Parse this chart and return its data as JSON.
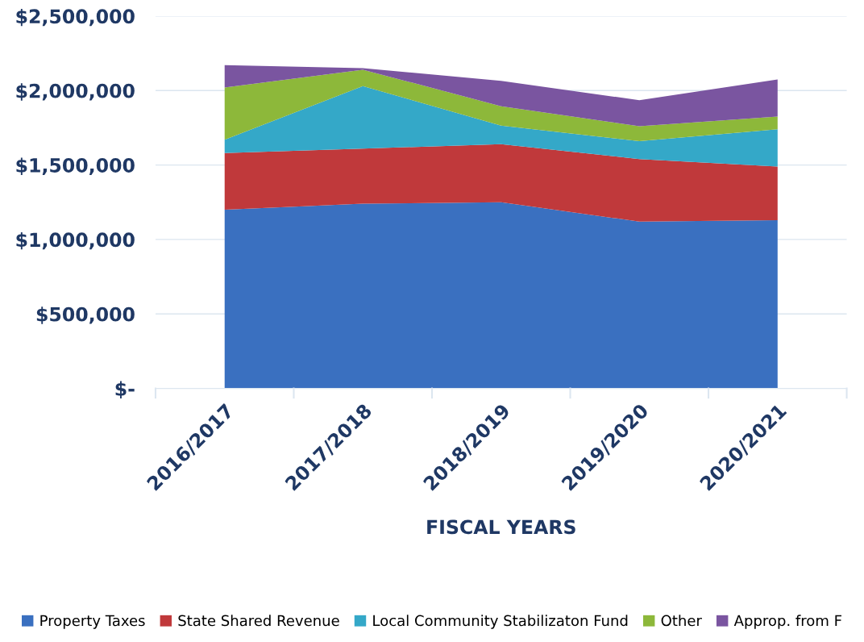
{
  "chart_data": {
    "type": "area",
    "stacked": true,
    "xlabel": "FISCAL YEARS",
    "categories": [
      "2016/2017",
      "2017/2018",
      "2018/2019",
      "2019/2020",
      "2020/2021"
    ],
    "series": [
      {
        "name": "Property Taxes",
        "color": "#3a70c0",
        "values": [
          1200000,
          1240000,
          1250000,
          1120000,
          1130000
        ]
      },
      {
        "name": "State Shared Revenue",
        "color": "#c0393b",
        "values": [
          380000,
          370000,
          390000,
          420000,
          360000
        ]
      },
      {
        "name": "Local Community Stabilizaton Fund",
        "color": "#34a8c8",
        "values": [
          90000,
          420000,
          125000,
          120000,
          250000
        ]
      },
      {
        "name": "Other",
        "color": "#8db83a",
        "values": [
          350000,
          110000,
          130000,
          100000,
          85000
        ]
      },
      {
        "name": "Approp. from F",
        "color": "#7a55a0",
        "values": [
          150000,
          10000,
          170000,
          175000,
          250000
        ]
      }
    ],
    "ylim": [
      0,
      2500000
    ],
    "yticks": [
      {
        "value": 0,
        "label": "$-"
      },
      {
        "value": 500000,
        "label": "$500,000"
      },
      {
        "value": 1000000,
        "label": "$1,000,000"
      },
      {
        "value": 1500000,
        "label": "$1,500,000"
      },
      {
        "value": 2000000,
        "label": "$2,000,000"
      },
      {
        "value": 2500000,
        "label": "$2,500,000"
      }
    ],
    "grid": "y",
    "legend": "bottom"
  }
}
